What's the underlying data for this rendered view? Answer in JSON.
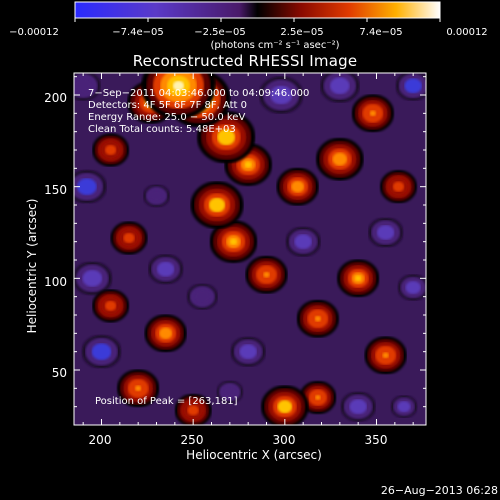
{
  "colorbar": {
    "tick_labels": [
      "−0.00012",
      "−7.4e−05",
      "−2.5e−05",
      "2.5e−05",
      "7.4e−05",
      "0.00012"
    ],
    "units_label": "(photons cm⁻² s⁻¹ asec⁻²)",
    "vmin": -0.00012,
    "vmax": 0.00012
  },
  "title": "Reconstructed RHESSI Image",
  "annotations": {
    "line1": "7−Sep−2011 04:03:46.000 to 04:09:46.000",
    "line2": "Detectors: 4F 5F 6F 7F 8F, Att 0",
    "line3": "Energy Range: 25.0 − 50.0 keV",
    "line4": "Clean     Total counts: 5.48E+03",
    "peak": "Position of Peak = [263,181]"
  },
  "footer_date": "26−Aug−2013 06:28",
  "chart_data": {
    "type": "heatmap",
    "title": "Reconstructed RHESSI Image",
    "xlabel": "Heliocentric X (arcsec)",
    "ylabel": "Heliocentric Y (arcsec)",
    "xlim": [
      185,
      377
    ],
    "ylim": [
      20,
      212
    ],
    "x_ticks": [
      200,
      250,
      300,
      350
    ],
    "y_ticks": [
      50,
      100,
      150,
      200
    ],
    "x_tick_labels": [
      "200",
      "250",
      "300",
      "350"
    ],
    "y_tick_labels": [
      "50",
      "100",
      "150",
      "200"
    ],
    "colormap": "red-temperature with blue/purple negatives",
    "peak_position": [
      263,
      181
    ],
    "sources": [
      {
        "x": 242,
        "y": 205,
        "value": 0.00012,
        "s": 14
      },
      {
        "x": 253,
        "y": 198,
        "value": 0.00011,
        "s": 12
      },
      {
        "x": 227,
        "y": 196,
        "value": 8e-05,
        "s": 9
      },
      {
        "x": 268,
        "y": 177,
        "value": 0.0001,
        "s": 11
      },
      {
        "x": 280,
        "y": 162,
        "value": 9e-05,
        "s": 9
      },
      {
        "x": 263,
        "y": 140,
        "value": 0.0001,
        "s": 10
      },
      {
        "x": 272,
        "y": 120,
        "value": 9e-05,
        "s": 9
      },
      {
        "x": 290,
        "y": 102,
        "value": 7e-05,
        "s": 8
      },
      {
        "x": 307,
        "y": 150,
        "value": 8e-05,
        "s": 8
      },
      {
        "x": 330,
        "y": 165,
        "value": 8e-05,
        "s": 9
      },
      {
        "x": 348,
        "y": 190,
        "value": 7e-05,
        "s": 8
      },
      {
        "x": 362,
        "y": 150,
        "value": 6e-05,
        "s": 7
      },
      {
        "x": 340,
        "y": 100,
        "value": 9e-05,
        "s": 8
      },
      {
        "x": 318,
        "y": 78,
        "value": 7e-05,
        "s": 8
      },
      {
        "x": 355,
        "y": 58,
        "value": 7e-05,
        "s": 8
      },
      {
        "x": 300,
        "y": 30,
        "value": 0.0001,
        "s": 9
      },
      {
        "x": 318,
        "y": 35,
        "value": 7e-05,
        "s": 7
      },
      {
        "x": 250,
        "y": 28,
        "value": 6e-05,
        "s": 7
      },
      {
        "x": 220,
        "y": 40,
        "value": 7e-05,
        "s": 8
      },
      {
        "x": 235,
        "y": 70,
        "value": 8e-05,
        "s": 8
      },
      {
        "x": 205,
        "y": 85,
        "value": 6e-05,
        "s": 7
      },
      {
        "x": 215,
        "y": 122,
        "value": 6e-05,
        "s": 7
      },
      {
        "x": 205,
        "y": 170,
        "value": 6e-05,
        "s": 7
      },
      {
        "x": 192,
        "y": 150,
        "value": -0.0001,
        "s": 9
      },
      {
        "x": 190,
        "y": 205,
        "value": -6e-05,
        "s": 8
      },
      {
        "x": 195,
        "y": 100,
        "value": -9e-05,
        "s": 9
      },
      {
        "x": 200,
        "y": 60,
        "value": -0.0001,
        "s": 9
      },
      {
        "x": 235,
        "y": 105,
        "value": -7e-05,
        "s": 8
      },
      {
        "x": 298,
        "y": 200,
        "value": -9e-05,
        "s": 10
      },
      {
        "x": 330,
        "y": 205,
        "value": -8e-05,
        "s": 9
      },
      {
        "x": 370,
        "y": 205,
        "value": -0.0001,
        "s": 8
      },
      {
        "x": 355,
        "y": 125,
        "value": -7e-05,
        "s": 8
      },
      {
        "x": 370,
        "y": 95,
        "value": -8e-05,
        "s": 7
      },
      {
        "x": 310,
        "y": 120,
        "value": -7e-05,
        "s": 8
      },
      {
        "x": 255,
        "y": 90,
        "value": -6e-05,
        "s": 7
      },
      {
        "x": 280,
        "y": 60,
        "value": -7e-05,
        "s": 8
      },
      {
        "x": 270,
        "y": 38,
        "value": -6e-05,
        "s": 6
      },
      {
        "x": 340,
        "y": 30,
        "value": -9e-05,
        "s": 8
      },
      {
        "x": 365,
        "y": 30,
        "value": -7e-05,
        "s": 6
      },
      {
        "x": 230,
        "y": 145,
        "value": -5e-05,
        "s": 6
      }
    ]
  }
}
